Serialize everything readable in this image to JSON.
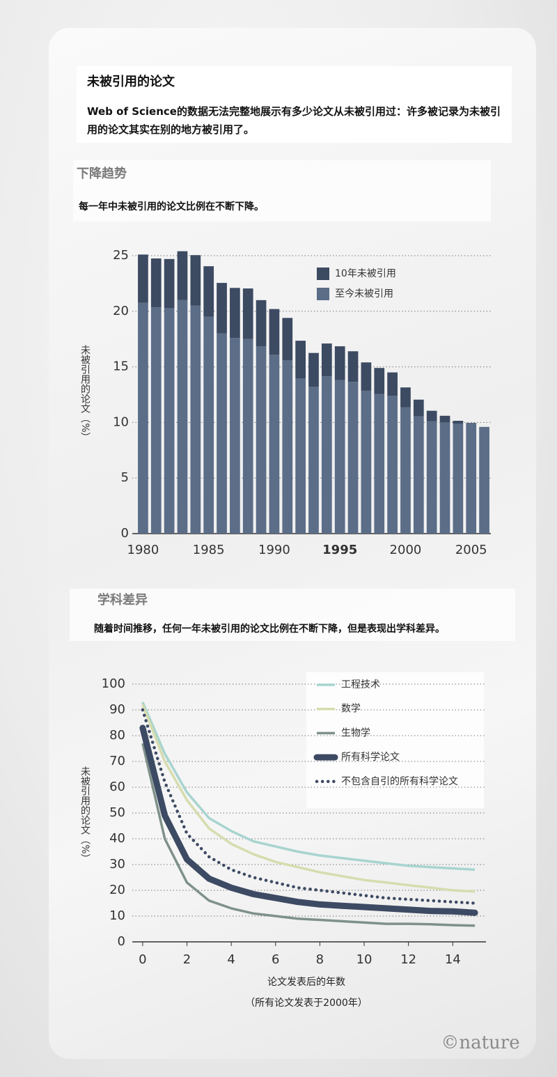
{
  "header": {
    "title": "未被引用的论文",
    "text": "Web of Science的数据无法完整地展示有多少论文从未被引用过：许多被记录为未被引用的论文其实在别的地方被引用了。"
  },
  "chart_data": [
    {
      "type": "bar",
      "title": "下降趋势",
      "subtitle": "每一年中未被引用的论文比例在不断下降。",
      "y_label": "未被引用的论文（%）",
      "x": [
        1980,
        1981,
        1982,
        1983,
        1984,
        1985,
        1986,
        1987,
        1988,
        1989,
        1990,
        1991,
        1992,
        1993,
        1994,
        1995,
        1996,
        1997,
        1998,
        1999,
        2000,
        2001,
        2002,
        2003,
        2004,
        2005,
        2006
      ],
      "xlim": [
        1979.5,
        2006.5
      ],
      "xticks": [
        1980,
        1985,
        1990,
        1995,
        2000,
        2005
      ],
      "ylim": [
        0,
        25
      ],
      "yticks": [
        0,
        5,
        10,
        15,
        20,
        25
      ],
      "grid": true,
      "stacked": true,
      "series": [
        {
          "name": "至今未被引用",
          "color": "#5b6d87",
          "values": [
            20.75,
            20.35,
            20.3,
            21.0,
            20.5,
            19.5,
            18.0,
            17.6,
            17.5,
            16.85,
            16.1,
            15.6,
            13.95,
            13.2,
            14.15,
            13.8,
            13.65,
            12.85,
            12.55,
            12.4,
            11.35,
            10.55,
            10.1,
            10.0,
            9.9,
            9.9,
            9.6
          ]
        },
        {
          "name": "10年未被引用",
          "color": "#3c4a62",
          "values": [
            4.35,
            4.4,
            4.4,
            4.4,
            4.55,
            4.55,
            4.55,
            4.5,
            4.55,
            4.15,
            4.1,
            3.8,
            3.4,
            3.05,
            2.95,
            3.05,
            2.75,
            2.55,
            2.35,
            2.1,
            1.8,
            1.5,
            0.95,
            0.6,
            0.25,
            0.05,
            0
          ]
        }
      ]
    },
    {
      "type": "line",
      "title": "学科差异",
      "subtitle": "随着时间推移，任何一年未被引用的论文比例在不断下降，但是表现出学科差异。",
      "y_label": "未被引用的论文（%）",
      "x_label": "论文发表后的年数",
      "note": "（所有论文发表于2000年）",
      "x": [
        0,
        1,
        2,
        3,
        4,
        5,
        6,
        7,
        8,
        9,
        10,
        11,
        12,
        13,
        14,
        15
      ],
      "xlim": [
        -0.5,
        15.5
      ],
      "xticks": [
        0,
        2,
        4,
        6,
        8,
        10,
        12,
        14
      ],
      "ylim": [
        0,
        100
      ],
      "yticks": [
        0,
        10,
        20,
        30,
        40,
        50,
        60,
        70,
        80,
        90,
        100
      ],
      "grid": true,
      "series": [
        {
          "name": "工程技术",
          "color": "#a8d4cf",
          "line_style": "solid",
          "values": [
            93,
            73,
            58,
            48,
            43,
            39,
            37,
            35,
            33.5,
            32.5,
            31.5,
            30.5,
            29.5,
            29,
            28.5,
            28
          ]
        },
        {
          "name": "数学",
          "color": "#d6dcae",
          "line_style": "solid",
          "values": [
            92,
            70,
            55,
            44,
            38,
            34,
            31,
            29,
            27,
            25.5,
            24,
            23,
            22,
            21,
            20,
            19.5
          ]
        },
        {
          "name": "生物学",
          "color": "#7e918a",
          "line_style": "solid",
          "values": [
            77,
            40,
            23,
            16,
            13,
            11,
            10,
            9,
            8.5,
            8,
            7.5,
            7,
            7,
            6.8,
            6.5,
            6.3
          ]
        },
        {
          "name": "所有科学论文",
          "color": "#3d4a63",
          "line_style": "thick",
          "values": [
            83,
            49,
            32,
            24.5,
            21,
            18.5,
            17,
            15.5,
            14.5,
            14,
            13.5,
            13,
            12.5,
            12,
            11.8,
            11.3
          ]
        },
        {
          "name": "不包含自引的所有科学论文",
          "color": "#3d4a63",
          "line_style": "dotted",
          "values": [
            90,
            62,
            42,
            33,
            28,
            25,
            23,
            21,
            20,
            19,
            18,
            17,
            16.5,
            16,
            15.5,
            15
          ]
        }
      ]
    }
  ],
  "credit": "©nature"
}
